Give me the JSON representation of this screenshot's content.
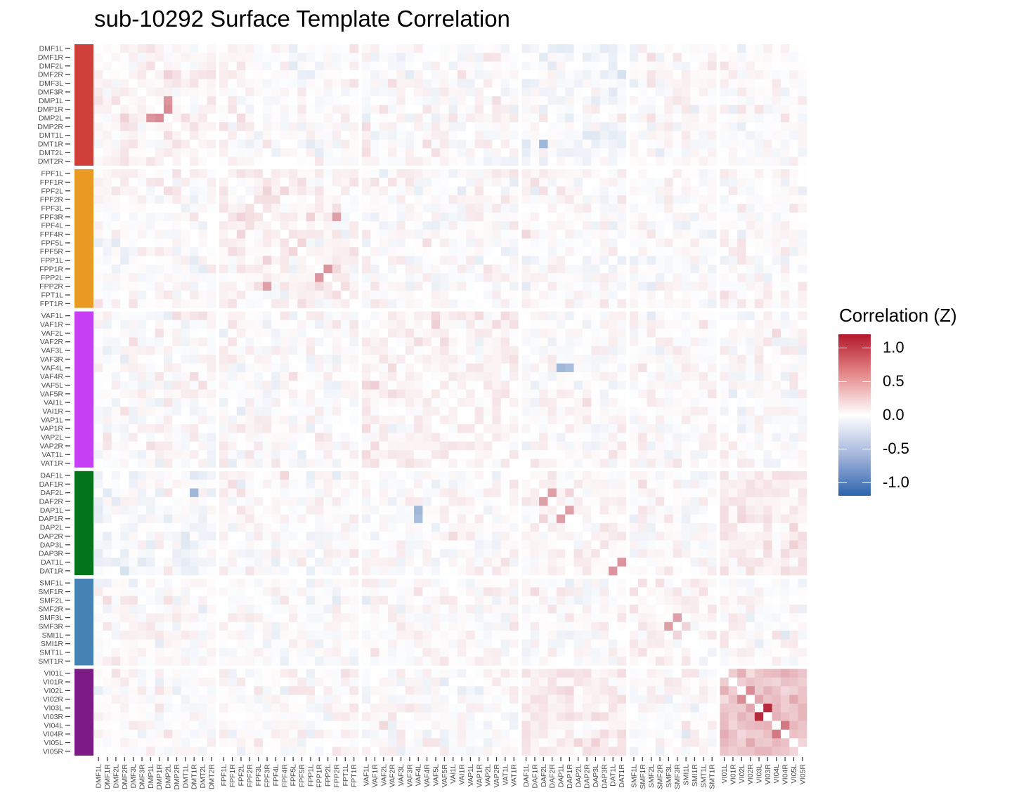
{
  "chart_data": {
    "type": "heatmap",
    "title": "sub-10292 Surface Template Correlation",
    "legend_title": "Correlation (Z)",
    "color_scale": {
      "low": "#2e64ad",
      "mid": "#ffffff",
      "high": "#b2182b",
      "limits": [
        -1.2,
        1.2
      ]
    },
    "legend_ticks": [
      "1.0",
      "0.5",
      "0.0",
      "-0.5",
      "-1.0"
    ],
    "legend_tick_values": [
      1.0,
      0.5,
      0.0,
      -0.5,
      -1.0
    ],
    "legend_placement": "right",
    "groups": [
      {
        "name": "DM",
        "color": "#d0403b",
        "labels": [
          "DMF1L",
          "DMF1R",
          "DMF2L",
          "DMF2R",
          "DMF3L",
          "DMF3R",
          "DMP1L",
          "DMP1R",
          "DMP2L",
          "DMP2R",
          "DMT1L",
          "DMT1R",
          "DMT2L",
          "DMT2R"
        ]
      },
      {
        "name": "FP",
        "color": "#e89a23",
        "labels": [
          "FPF1L",
          "FPF1R",
          "FPF2L",
          "FPF2R",
          "FPF3L",
          "FPF3R",
          "FPF4L",
          "FPF4R",
          "FPF5L",
          "FPF5R",
          "FPP1L",
          "FPP1R",
          "FPP2L",
          "FPP2R",
          "FPT1L",
          "FPT1R"
        ]
      },
      {
        "name": "VA",
        "color": "#c63ff5",
        "labels": [
          "VAF1L",
          "VAF1R",
          "VAF2L",
          "VAF2R",
          "VAF3L",
          "VAF3R",
          "VAF4L",
          "VAF4R",
          "VAF5L",
          "VAF5R",
          "VAI1L",
          "VAI1R",
          "VAP1L",
          "VAP1R",
          "VAP2L",
          "VAP2R",
          "VAT1L",
          "VAT1R"
        ]
      },
      {
        "name": "DA",
        "color": "#03741a",
        "labels": [
          "DAF1L",
          "DAF1R",
          "DAF2L",
          "DAF2R",
          "DAP1L",
          "DAP1R",
          "DAP2L",
          "DAP2R",
          "DAP3L",
          "DAP3R",
          "DAT1L",
          "DAT1R"
        ]
      },
      {
        "name": "SM",
        "color": "#4682b4",
        "labels": [
          "SMF1L",
          "SMF1R",
          "SMF2L",
          "SMF2R",
          "SMF3L",
          "SMF3R",
          "SMI1L",
          "SMI1R",
          "SMT1L",
          "SMT1R"
        ]
      },
      {
        "name": "VI",
        "color": "#7c1a86",
        "labels": [
          "VI01L",
          "VI01R",
          "VI02L",
          "VI02R",
          "VI03L",
          "VI03R",
          "VI04L",
          "VI04R",
          "VI05L",
          "VI05R"
        ]
      }
    ],
    "strong_cells": [
      {
        "row": "DMP1R",
        "col": "DMP2L",
        "value": 0.6
      },
      {
        "row": "DMP2L",
        "col": "DMP1R",
        "value": 0.6
      },
      {
        "row": "DMP1L",
        "col": "DMP2L",
        "value": 0.55
      },
      {
        "row": "FPP1R",
        "col": "FPP2L",
        "value": 0.55
      },
      {
        "row": "FPP2L",
        "col": "FPP1R",
        "value": 0.55
      },
      {
        "row": "FPF3R",
        "col": "FPP2R",
        "value": 0.5
      },
      {
        "row": "VI03L",
        "col": "VI03R",
        "value": 1.1
      },
      {
        "row": "VI03R",
        "col": "VI03L",
        "value": 1.1
      },
      {
        "row": "VI02L",
        "col": "VI02R",
        "value": 0.6
      },
      {
        "row": "VI04R",
        "col": "VI04L",
        "value": 0.7
      },
      {
        "row": "DAT1R",
        "col": "DAT1L",
        "value": 0.55
      },
      {
        "row": "DAT1L",
        "col": "DAT1R",
        "value": 0.55
      },
      {
        "row": "SMF3R",
        "col": "SMF3L",
        "value": 0.5
      },
      {
        "row": "DAP1R",
        "col": "DAP1L",
        "value": 0.5
      },
      {
        "row": "DAF2L",
        "col": "DAF2R",
        "value": 0.5
      },
      {
        "row": "VAF4L",
        "col": "DAP1L",
        "value": -0.55
      },
      {
        "row": "DMT1R",
        "col": "DAF2L",
        "value": -0.55
      },
      {
        "row": "DAP1R",
        "col": "VAF4L",
        "value": -0.5
      }
    ],
    "diagonal": "white",
    "grid": false
  }
}
